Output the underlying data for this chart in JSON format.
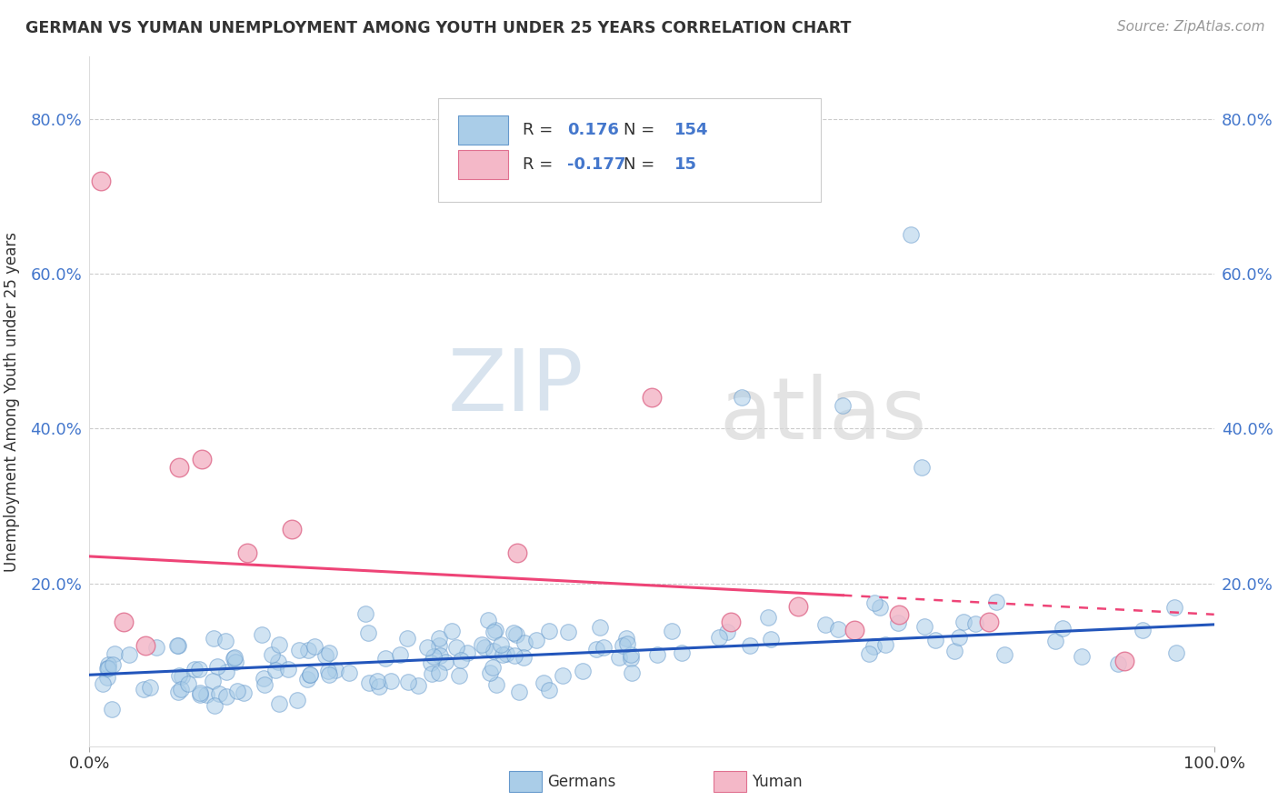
{
  "title": "GERMAN VS YUMAN UNEMPLOYMENT AMONG YOUTH UNDER 25 YEARS CORRELATION CHART",
  "source": "Source: ZipAtlas.com",
  "ylabel": "Unemployment Among Youth under 25 years",
  "xlim": [
    0.0,
    1.0
  ],
  "ylim": [
    -0.01,
    0.88
  ],
  "ytick_vals": [
    0.2,
    0.4,
    0.6,
    0.8
  ],
  "ytick_labels": [
    "20.0%",
    "40.0%",
    "60.0%",
    "80.0%"
  ],
  "xtick_vals": [
    0.0,
    1.0
  ],
  "xtick_labels": [
    "0.0%",
    "100.0%"
  ],
  "grid_color": "#cccccc",
  "background_color": "#ffffff",
  "german_color": "#aacde8",
  "german_edge_color": "#6699cc",
  "yuman_color": "#f4b8c8",
  "yuman_edge_color": "#e07090",
  "german_line_color": "#2255bb",
  "yuman_line_color": "#ee4477",
  "tick_color_y": "#4477cc",
  "tick_color_x": "#333333",
  "legend_german_R": "0.176",
  "legend_german_N": "154",
  "legend_yuman_R": "-0.177",
  "legend_yuman_N": "15",
  "watermark_zip": "ZIP",
  "watermark_atlas": "atlas",
  "german_intercept": 0.082,
  "german_slope": 0.065,
  "yuman_intercept": 0.235,
  "yuman_slope": -0.075
}
